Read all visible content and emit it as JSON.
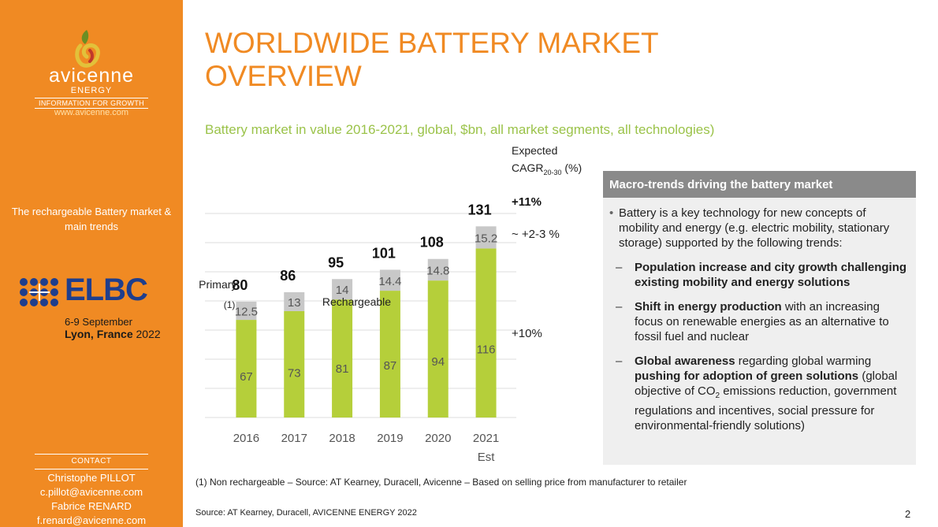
{
  "sidebar": {
    "brand_name": "avicenne",
    "brand_sub": "ENERGY",
    "brand_tag": "INFORMATION FOR GROWTH",
    "brand_url": "www.avicenne.com",
    "topic": "The rechargeable Battery market & main trends",
    "event": {
      "name": "ELBC",
      "dates": "6-9 September",
      "city": "Lyon, France",
      "year": "2022"
    },
    "contact": {
      "label": "CONTACT",
      "name1": "Christophe PILLOT",
      "email1": "c.pillot@avicenne.com",
      "name2": "Fabrice RENARD",
      "email2": "f.renard@avicenne.com"
    }
  },
  "slide": {
    "title_line1": "WORLDWIDE BATTERY MARKET",
    "title_line2": "OVERVIEW",
    "subtitle": "Battery market in value 2016-2021, global, $bn, all market segments, all technologies)",
    "footnote": "(1) Non rechargeable – Source: AT Kearney, Duracell, Avicenne – Based on selling price from manufacturer to retailer",
    "source": "Source: AT Kearney, Duracell, AVICENNE ENERGY 2022",
    "page_number": "2"
  },
  "panel": {
    "heading": "Macro-trends driving the battery market",
    "intro": "Battery is a key technology for new concepts of mobility and energy (e.g. electric mobility, stationary storage) supported by the following trends:",
    "items": [
      {
        "bold": "Population increase and city growth challenging existing mobility and energy solutions",
        "rest": ""
      },
      {
        "bold": "Shift in energy production",
        "rest": " with an increasing focus on renewable energies as an alternative to fossil fuel and nuclear"
      },
      {
        "bold": "Global awareness",
        "rest": " regarding global warming ",
        "bold2": "pushing for adoption of green solutions",
        "rest2": " (global objective of CO",
        "sub": "2",
        "rest3": " emissions reduction, government regulations and incentives, social pressure for environmental-friendly solutions)"
      }
    ]
  },
  "colors": {
    "orange": "#f08a23",
    "green": "#b5cf3a",
    "grey": "#c8c8c8",
    "subtitle_green": "#9bc34a",
    "panel_head": "#8a8a8a",
    "elbc_blue": "#1f3e8c"
  },
  "chart_data": {
    "type": "bar",
    "stacked": true,
    "title": "Battery market in value 2016-2021, global, $bn, all market segments, all technologies)",
    "categories": [
      "2016",
      "2017",
      "2018",
      "2019",
      "2020",
      "2021"
    ],
    "category_sublabels": [
      "",
      "",
      "",
      "",
      "",
      "Est"
    ],
    "series": [
      {
        "name": "Rechargeable",
        "values": [
          67,
          73,
          81,
          87,
          94,
          116
        ]
      },
      {
        "name": "Primary",
        "footnote_marker": "(1)",
        "values": [
          12.5,
          13,
          14,
          14.4,
          14.8,
          15.2
        ]
      }
    ],
    "series_value_labels": {
      "Rechargeable": [
        "67",
        "73",
        "81",
        "87",
        "94",
        "116"
      ],
      "Primary": [
        "12.5",
        "13",
        "14",
        "14.4",
        "14.8",
        "15.2"
      ]
    },
    "totals": [
      80,
      86,
      95,
      101,
      108,
      131
    ],
    "ylim": [
      0,
      140
    ],
    "grid": true,
    "cagr": {
      "header_line1": "Expected",
      "header_line2": "CAGR",
      "header_sub": "20-30",
      "header_unit": " (%)",
      "total": "+11%",
      "primary": "~ +2-3 %",
      "rechargeable": "+10%"
    }
  }
}
